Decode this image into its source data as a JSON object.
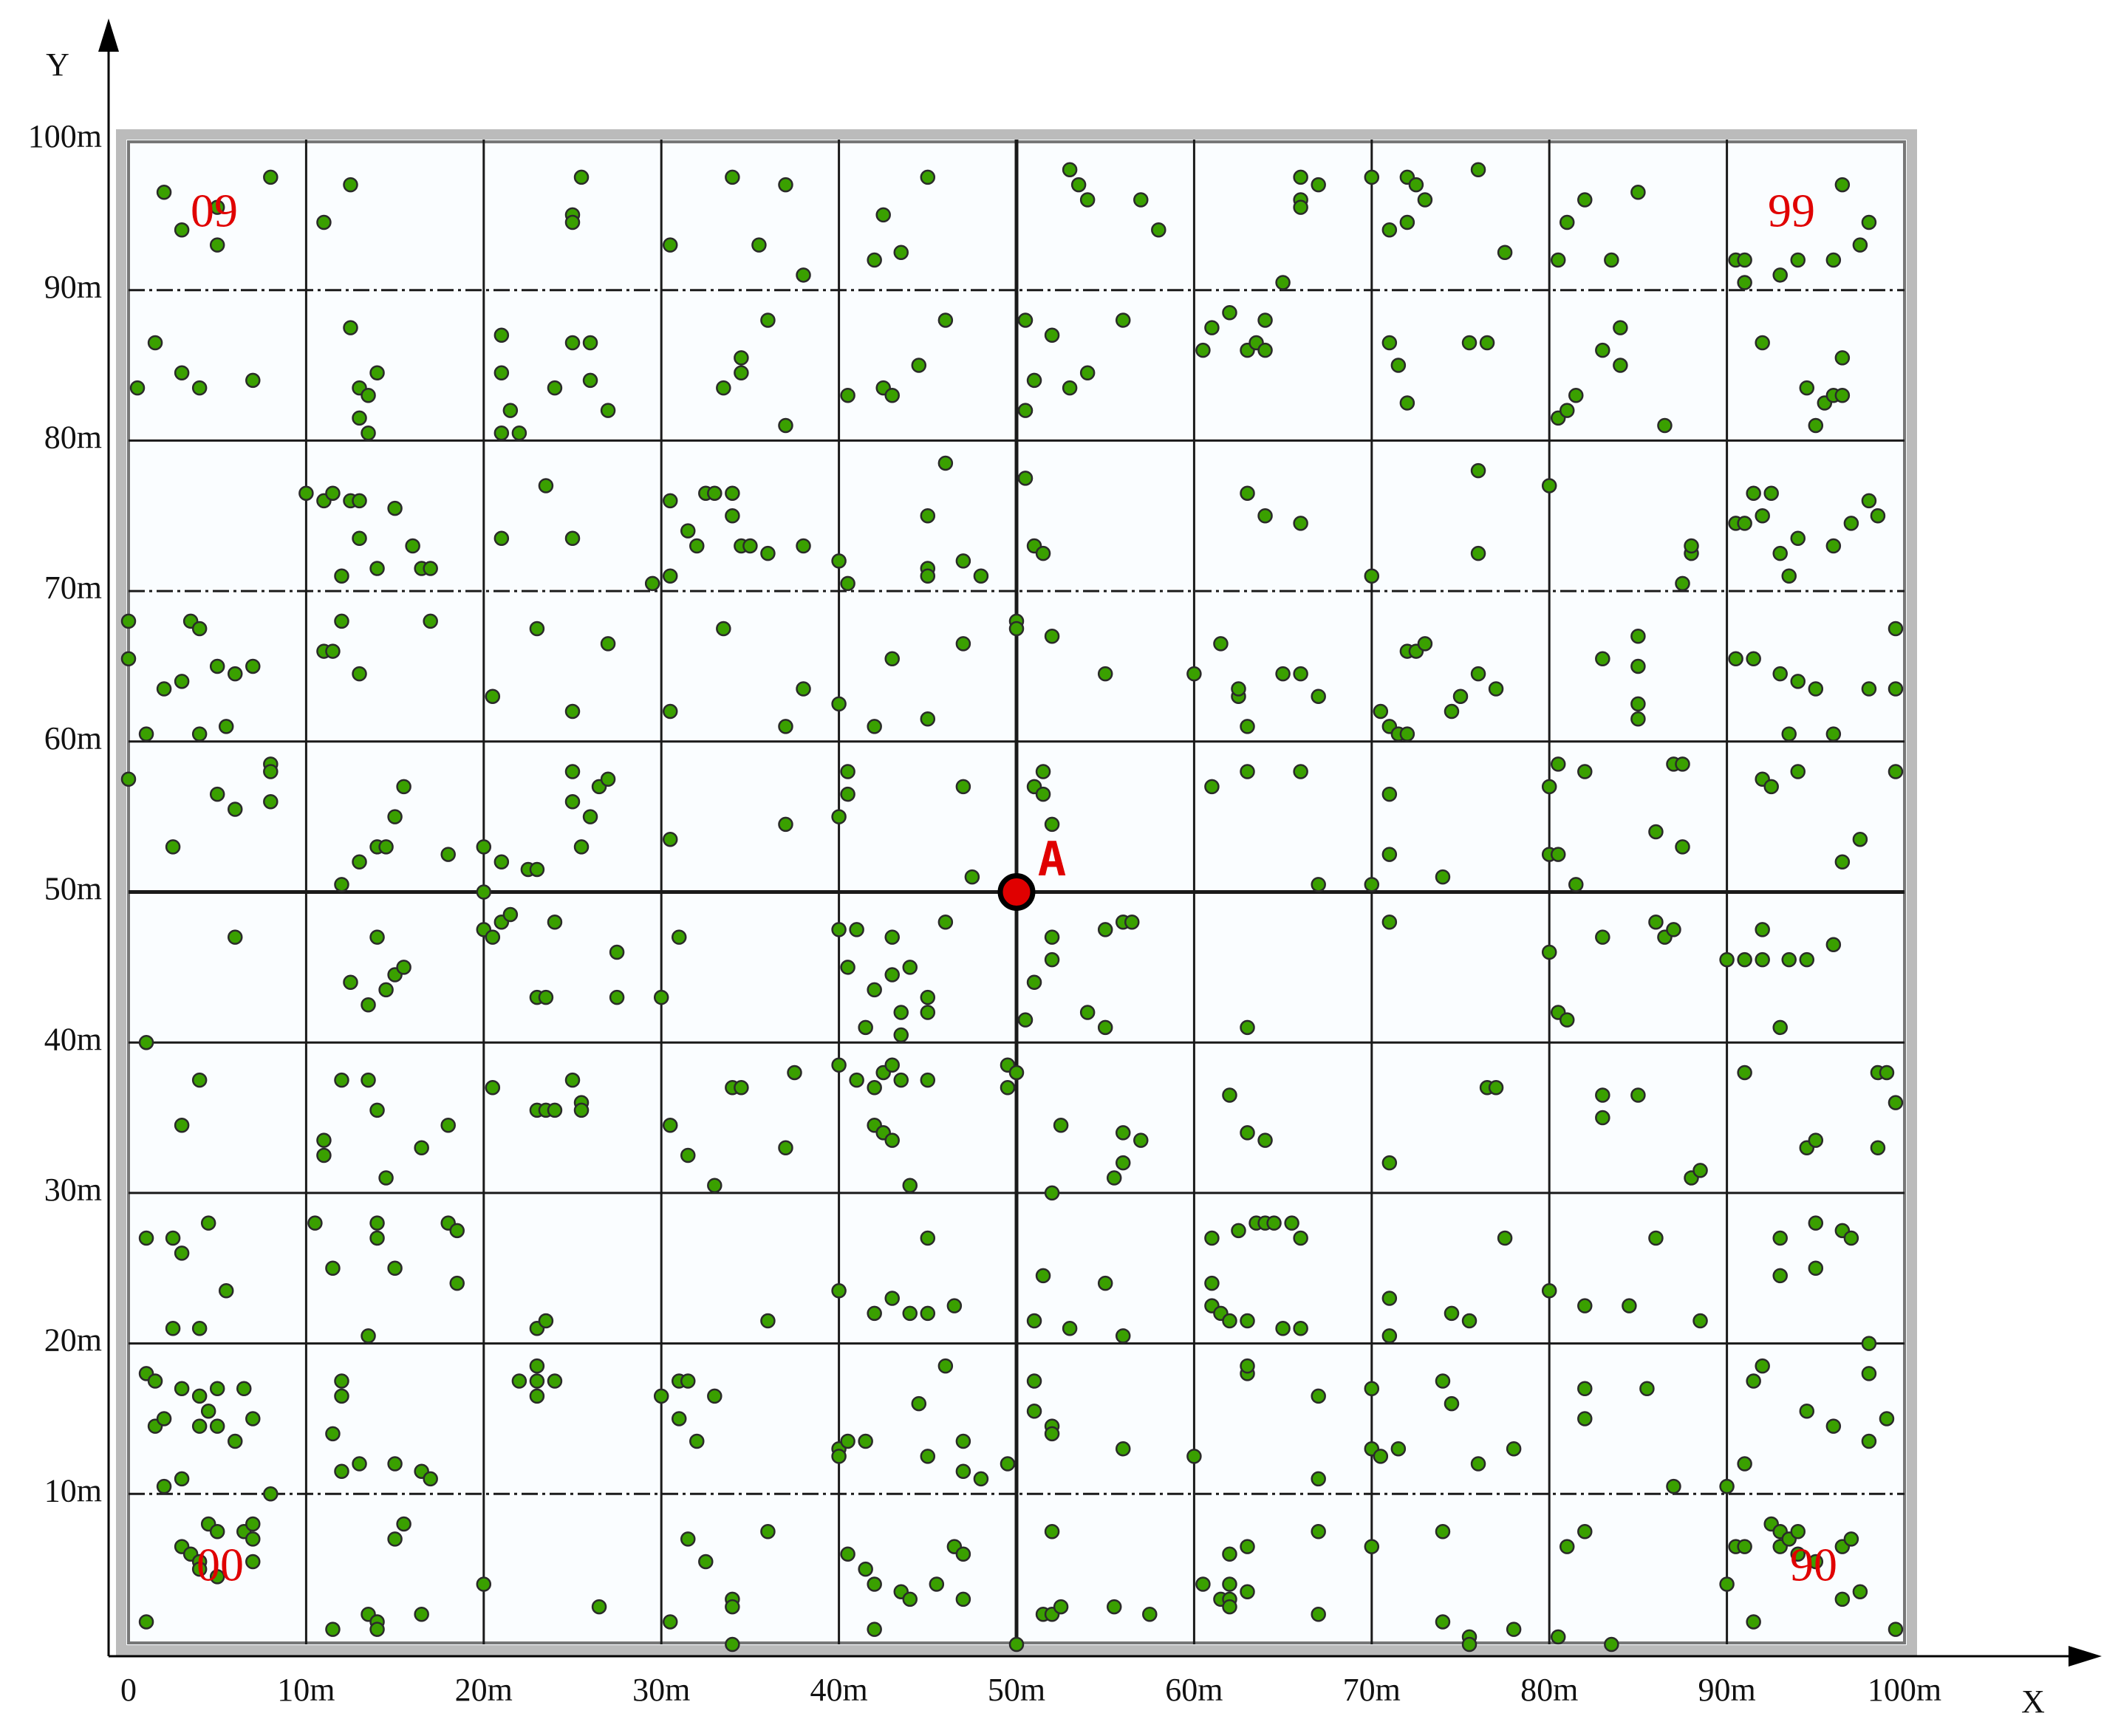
{
  "chart_data": {
    "type": "scatter",
    "x_label": "X",
    "y_label": "Y",
    "xlim": [
      0,
      100
    ],
    "ylim": [
      0,
      100
    ],
    "xticks": [
      {
        "value": 0,
        "label": "0"
      },
      {
        "value": 10,
        "label": "10m"
      },
      {
        "value": 20,
        "label": "20m"
      },
      {
        "value": 30,
        "label": "30m"
      },
      {
        "value": 40,
        "label": "40m"
      },
      {
        "value": 50,
        "label": "50m"
      },
      {
        "value": 60,
        "label": "60m"
      },
      {
        "value": 70,
        "label": "70m"
      },
      {
        "value": 80,
        "label": "80m"
      },
      {
        "value": 90,
        "label": "90m"
      },
      {
        "value": 100,
        "label": "100m"
      }
    ],
    "yticks": [
      {
        "value": 10,
        "label": "10m"
      },
      {
        "value": 20,
        "label": "20m"
      },
      {
        "value": 30,
        "label": "30m"
      },
      {
        "value": 40,
        "label": "40m"
      },
      {
        "value": 50,
        "label": "50m"
      },
      {
        "value": 60,
        "label": "60m"
      },
      {
        "value": 70,
        "label": "70m"
      },
      {
        "value": 80,
        "label": "80m"
      },
      {
        "value": 90,
        "label": "90m"
      },
      {
        "value": 100,
        "label": "100m"
      }
    ],
    "grid": true,
    "color": "#3aa000",
    "annotations": [
      "09",
      "99",
      "00",
      "90"
    ],
    "node": {
      "label": "A",
      "x": 50,
      "y": 50,
      "color": "#e00000"
    },
    "x": [
      2,
      3,
      5,
      5,
      8,
      11,
      12.5,
      25,
      25,
      25.5,
      30.5,
      34,
      35.5,
      37,
      38,
      42,
      42.5,
      43.5,
      45,
      53,
      53.5,
      54,
      57,
      58,
      66,
      66,
      66,
      67,
      65,
      70,
      71,
      72,
      72,
      72.5,
      73,
      76,
      77.5,
      80.5,
      81,
      82,
      83.5,
      85,
      90.5,
      91,
      91,
      93,
      94,
      96,
      96.5,
      97.5,
      98,
      0.5,
      1.5,
      3,
      4,
      7,
      13,
      13.5,
      13,
      13.5,
      12.5,
      14,
      21,
      21,
      21.5,
      21,
      22,
      24,
      25,
      26,
      26,
      27,
      33.5,
      34.5,
      34.5,
      36,
      37,
      40.5,
      42.5,
      43,
      44.5,
      46,
      50.5,
      50.5,
      51,
      52,
      53,
      54,
      56,
      60.5,
      61,
      62,
      63,
      63.5,
      64,
      64,
      71,
      71.5,
      72,
      75.5,
      76.5,
      80.5,
      81,
      81.5,
      83,
      84,
      84,
      86.5,
      92,
      94.5,
      95,
      95.5,
      96,
      96.5,
      96.5,
      10,
      11,
      11.5,
      12,
      12.5,
      13,
      13,
      14,
      15,
      16,
      16.5,
      17,
      21,
      23.5,
      25,
      29.5,
      30.5,
      30.5,
      31.5,
      32,
      32.5,
      33,
      34,
      34,
      34.5,
      35,
      36,
      38,
      40,
      40.5,
      45,
      45,
      45,
      46,
      47,
      48,
      50.5,
      51,
      51.5,
      63,
      64,
      66,
      70,
      76,
      76,
      80,
      87.5,
      88,
      88,
      90.5,
      91,
      91.5,
      92,
      92.5,
      93,
      93.5,
      94,
      96,
      97,
      98,
      98.5,
      0,
      0,
      1,
      2,
      3,
      3.5,
      4,
      4,
      5,
      5.5,
      6,
      7,
      11,
      11.5,
      12,
      13,
      17,
      20.5,
      23,
      25,
      27,
      30.5,
      33.5,
      37,
      38,
      40,
      42,
      43,
      45,
      47,
      50,
      50,
      52,
      55,
      60,
      61.5,
      62.5,
      62.5,
      63,
      65,
      66,
      67,
      70.5,
      71,
      71.5,
      72,
      72,
      72.5,
      73,
      74.5,
      75,
      76,
      77,
      83,
      85,
      85,
      85,
      85,
      90.5,
      91.5,
      93,
      93.5,
      94,
      95,
      96,
      98,
      99.5,
      99.5,
      0,
      2.5,
      5,
      6,
      8,
      8,
      8,
      12,
      13,
      14,
      14.5,
      15,
      15.5,
      18,
      20,
      20,
      21,
      22.5,
      23,
      25,
      25,
      25.5,
      26,
      26.5,
      27,
      30.5,
      37,
      40,
      40.5,
      40.5,
      47,
      47.5,
      51,
      51.5,
      51.5,
      52,
      61,
      63,
      66,
      67,
      70,
      71,
      71,
      74,
      80,
      80,
      80.5,
      80.5,
      81.5,
      82,
      86,
      87,
      87.5,
      87.5,
      92,
      92.5,
      94,
      96.5,
      97.5,
      99.5,
      1,
      6,
      12.5,
      13.5,
      14,
      14.5,
      15,
      15.5,
      20,
      20.5,
      21,
      21.5,
      23,
      23.5,
      24,
      27.5,
      27.5,
      30,
      31,
      40,
      40.5,
      41,
      41.5,
      42,
      43,
      43,
      43.5,
      43.5,
      44,
      45,
      45,
      46,
      50.5,
      51,
      52,
      52,
      54,
      55,
      55,
      56,
      56.5,
      63,
      71,
      80,
      80.5,
      81,
      83,
      86,
      86.5,
      87,
      90,
      91,
      92,
      92,
      93,
      93.5,
      94.5,
      96,
      3,
      4,
      11,
      11,
      12,
      13.5,
      14,
      14.5,
      16.5,
      18,
      20.5,
      23,
      23.5,
      24,
      25,
      25.5,
      25.5,
      30.5,
      31.5,
      33,
      34,
      34.5,
      37,
      37.5,
      40,
      41,
      42,
      42,
      42.5,
      42.5,
      43,
      43,
      43.5,
      44,
      45,
      49.5,
      49.5,
      50,
      52,
      52.5,
      55.5,
      56,
      56,
      57,
      62,
      63,
      64,
      71,
      76.5,
      77,
      83,
      83,
      85,
      88,
      88.5,
      91,
      94.5,
      95,
      98.5,
      98.5,
      99,
      99.5,
      1,
      2.5,
      2.5,
      3,
      4,
      4.5,
      5.5,
      10.5,
      11.5,
      13.5,
      14,
      14,
      15,
      18,
      18.5,
      18.5,
      23,
      23.5,
      36,
      40,
      42,
      43,
      44,
      45,
      45,
      46.5,
      51,
      51.5,
      53,
      55,
      56,
      61,
      61,
      61,
      61.5,
      62,
      62.5,
      63,
      63.5,
      64,
      64.5,
      65,
      65.5,
      66,
      66,
      71,
      71,
      74.5,
      75.5,
      77.5,
      80,
      82,
      84.5,
      86,
      88.5,
      93,
      93,
      95,
      95,
      96.5,
      97,
      1,
      1.5,
      1.5,
      2,
      2,
      3,
      3,
      4,
      4,
      4.5,
      5,
      5,
      6,
      6.5,
      7,
      8,
      11.5,
      12,
      12,
      12,
      13,
      15,
      16.5,
      17,
      22,
      23,
      23,
      23,
      24,
      30,
      31,
      31,
      31.5,
      32,
      33,
      40,
      40,
      40.5,
      41.5,
      44.5,
      45,
      46,
      47,
      47,
      48,
      49.5,
      51,
      51,
      52,
      52,
      56,
      60,
      63,
      63,
      67,
      67,
      70,
      70,
      70.5,
      71.5,
      74,
      74.5,
      76,
      78,
      82,
      82,
      85.5,
      87,
      90,
      91,
      91.5,
      92,
      94.5,
      96,
      98,
      98,
      98,
      99,
      1,
      3,
      3.5,
      4,
      4,
      4.5,
      5,
      5,
      6.5,
      7,
      7,
      7,
      11.5,
      13.5,
      14,
      14,
      15,
      15.5,
      16.5,
      20,
      26.5,
      30.5,
      31.5,
      32.5,
      34,
      34,
      34,
      36,
      40.5,
      41.5,
      42,
      42,
      43.5,
      44,
      45.5,
      46.5,
      47,
      47,
      50,
      51.5,
      52,
      52.5,
      52,
      55.5,
      57.5,
      60.5,
      61.5,
      62,
      62,
      62,
      62,
      63,
      63,
      67,
      67,
      70,
      74,
      74,
      75.5,
      75.5,
      78,
      80.5,
      81,
      82,
      83.5,
      90,
      90.5,
      91,
      91.5,
      92.5,
      93,
      93,
      93.5,
      94,
      94,
      95,
      96.5,
      96.5,
      97,
      97.5,
      99.5
    ],
    "values": [
      96.5,
      94,
      95.5,
      93,
      97.5,
      94.5,
      97,
      95,
      94.5,
      97.5,
      93,
      97.5,
      93,
      97,
      91,
      92,
      95,
      92.5,
      97.5,
      98,
      97,
      96,
      96,
      94,
      97.5,
      96,
      95.5,
      97,
      90.5,
      97.5,
      94,
      97.5,
      94.5,
      97,
      96,
      98,
      92.5,
      92,
      94.5,
      96,
      92,
      96.5,
      92,
      92,
      90.5,
      91,
      92,
      92,
      97,
      93,
      94.5,
      83.5,
      86.5,
      84.5,
      83.5,
      84,
      83.5,
      83,
      81.5,
      80.5,
      87.5,
      84.5,
      87,
      84.5,
      82,
      80.5,
      80.5,
      83.5,
      86.5,
      86.5,
      84,
      82,
      83.5,
      84.5,
      85.5,
      88,
      81,
      83,
      83.5,
      83,
      85,
      88,
      88,
      82,
      84,
      87,
      83.5,
      84.5,
      88,
      86,
      87.5,
      88.5,
      86,
      86.5,
      88,
      86,
      86.5,
      85,
      82.5,
      86.5,
      86.5,
      81.5,
      82,
      83,
      86,
      85,
      87.5,
      81,
      86.5,
      83.5,
      81,
      82.5,
      83,
      85.5,
      83,
      76.5,
      76,
      76.5,
      71,
      76,
      73.5,
      76,
      71.5,
      75.5,
      73,
      71.5,
      71.5,
      73.5,
      77,
      73.5,
      70.5,
      71,
      76,
      74,
      73,
      76.5,
      76.5,
      76.5,
      75,
      73,
      73,
      72.5,
      73,
      72,
      70.5,
      75,
      71.5,
      71,
      78.5,
      72,
      71,
      77.5,
      73,
      72.5,
      76.5,
      75,
      74.5,
      71,
      78,
      72.5,
      77,
      70.5,
      72.5,
      73,
      74.5,
      74.5,
      76.5,
      75,
      76.5,
      72.5,
      71,
      73.5,
      73,
      74.5,
      76,
      75,
      68,
      65.5,
      60.5,
      63.5,
      64,
      68,
      67.5,
      60.5,
      65,
      61,
      64.5,
      65,
      66,
      66,
      68,
      64.5,
      68,
      63,
      67.5,
      62,
      66.5,
      62,
      67.5,
      61,
      63.5,
      62.5,
      61,
      65.5,
      61.5,
      66.5,
      68,
      67.5,
      67,
      64.5,
      64.5,
      66.5,
      63,
      63.5,
      61,
      64.5,
      64.5,
      63,
      62,
      61,
      60.5,
      60.5,
      66,
      66,
      66.5,
      62,
      63,
      64.5,
      63.5,
      65.5,
      67,
      65,
      62.5,
      61.5,
      65.5,
      65.5,
      64.5,
      60.5,
      64,
      63.5,
      60.5,
      63.5,
      67.5,
      63.5,
      57.5,
      53,
      56.5,
      55.5,
      58.5,
      58,
      56,
      50.5,
      52,
      53,
      53,
      55,
      57,
      52.5,
      53,
      50,
      52,
      51.5,
      51.5,
      58,
      56,
      53,
      55,
      57,
      57.5,
      53.5,
      54.5,
      55,
      58,
      56.5,
      57,
      51,
      57,
      58,
      56.5,
      54.5,
      57,
      58,
      58,
      50.5,
      50.5,
      56.5,
      52.5,
      51,
      57,
      52.5,
      52.5,
      58.5,
      50.5,
      58,
      54,
      58.5,
      58.5,
      53,
      57.5,
      57,
      58,
      52,
      53.5,
      58,
      40,
      47,
      44,
      42.5,
      47,
      43.5,
      44.5,
      45,
      47.5,
      47,
      48,
      48.5,
      43,
      43,
      48,
      46,
      43,
      43,
      47,
      47.5,
      45,
      47.5,
      41,
      43.5,
      47,
      44.5,
      42,
      40.5,
      45,
      43,
      42,
      48,
      41.5,
      44,
      47,
      45.5,
      42,
      41,
      47.5,
      48,
      48,
      41,
      48,
      46,
      42,
      41.5,
      47,
      48,
      47,
      47.5,
      45.5,
      45.5,
      47.5,
      45.5,
      41,
      45.5,
      45.5,
      46.5,
      34.5,
      37.5,
      33.5,
      32.5,
      37.5,
      37.5,
      35.5,
      31,
      33,
      34.5,
      37,
      35.5,
      35.5,
      35.5,
      37.5,
      36,
      35.5,
      34.5,
      32.5,
      30.5,
      37,
      37,
      33,
      38,
      38.5,
      37.5,
      37,
      34.5,
      34,
      38,
      38.5,
      33.5,
      37.5,
      30.5,
      37.5,
      38.5,
      37,
      38,
      30,
      34.5,
      31,
      34,
      32,
      33.5,
      36.5,
      34,
      33.5,
      32,
      37,
      37,
      36.5,
      35,
      36.5,
      31,
      31.5,
      38,
      33,
      33.5,
      38,
      33,
      38,
      36,
      27,
      21,
      27,
      26,
      21,
      28,
      23.5,
      28,
      25,
      20.5,
      28,
      27,
      25,
      28,
      27.5,
      24,
      21,
      21.5,
      21.5,
      23.5,
      22,
      23,
      22,
      27,
      22,
      22.5,
      21.5,
      24.5,
      21,
      24,
      20.5,
      27,
      24,
      22.5,
      22,
      21.5,
      27.5,
      21.5,
      28,
      28,
      28,
      21,
      28,
      27,
      21,
      23,
      20.5,
      22,
      21.5,
      27,
      23.5,
      22.5,
      22.5,
      27,
      21.5,
      27,
      24.5,
      28,
      25,
      27.5,
      27,
      18,
      17.5,
      14.5,
      15,
      10.5,
      17,
      11,
      16.5,
      14.5,
      15.5,
      17,
      14.5,
      13.5,
      17,
      15,
      10,
      14,
      17.5,
      16.5,
      11.5,
      12,
      12,
      11.5,
      11,
      17.5,
      17.5,
      18.5,
      16.5,
      17.5,
      16.5,
      17.5,
      15,
      17.5,
      13.5,
      16.5,
      13,
      12.5,
      13.5,
      13.5,
      16,
      12.5,
      18.5,
      13.5,
      11.5,
      11,
      12,
      17.5,
      15.5,
      14.5,
      14,
      13,
      12.5,
      18,
      18.5,
      16.5,
      11,
      17,
      13,
      12.5,
      13,
      17.5,
      16,
      12,
      13,
      17,
      15,
      17,
      10.5,
      10.5,
      12,
      17.5,
      18.5,
      15.5,
      14.5,
      18,
      20,
      13.5,
      15,
      1.5,
      6.5,
      6,
      5.5,
      5,
      8,
      7.5,
      4.5,
      7.5,
      7,
      8,
      5.5,
      1,
      2,
      1.5,
      1,
      7,
      8,
      2,
      4,
      2.5,
      1.5,
      7,
      5.5,
      3,
      2.5,
      0,
      7.5,
      6,
      5,
      4,
      1,
      3.5,
      3,
      4,
      6.5,
      6,
      3,
      0,
      2,
      2,
      2.5,
      7.5,
      2.5,
      2,
      4,
      3,
      3,
      6,
      4,
      2.5,
      6.5,
      3.5,
      7.5,
      2,
      6.5,
      7.5,
      1.5,
      0.5,
      0,
      1,
      0.5,
      6.5,
      7.5,
      0,
      4,
      6.5,
      6.5,
      1.5,
      8,
      7.5,
      6.5,
      7,
      7.5,
      6,
      5.5,
      6.5,
      3,
      7,
      3.5,
      1
    ]
  }
}
